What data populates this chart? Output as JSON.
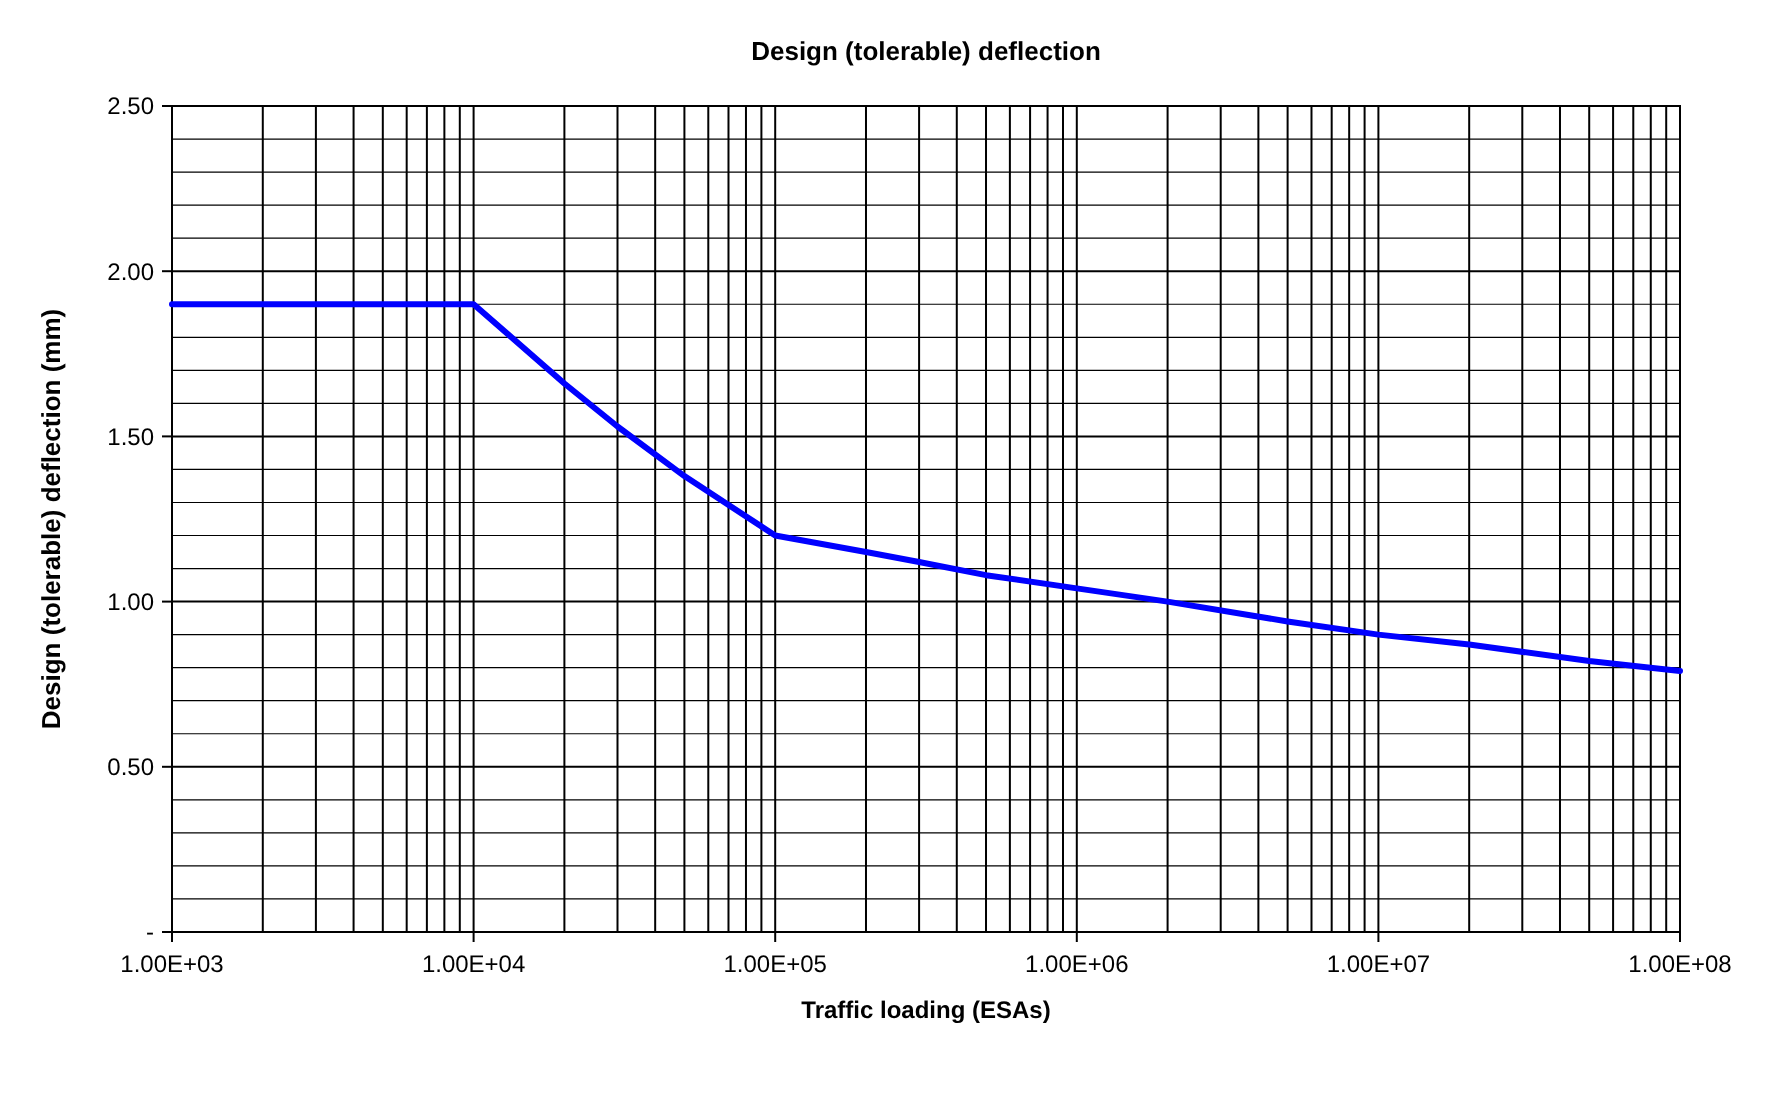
{
  "chart_data": {
    "type": "line",
    "title": "Design (tolerable) deflection",
    "xlabel": "Traffic loading (ESAs)",
    "ylabel": "Design (tolerable) deflection (mm)",
    "log": "x",
    "grid": true,
    "marker": "none",
    "line_style": "solid",
    "x": [
      1000,
      10000,
      20000,
      30000,
      50000,
      100000,
      200000,
      300000,
      500000,
      1000000,
      2000000,
      5000000,
      10000000,
      20000000,
      50000000,
      100000000
    ],
    "series": [
      {
        "color": "#0000ff",
        "values": [
          1.9,
          1.9,
          1.66,
          1.53,
          1.38,
          1.2,
          1.15,
          1.12,
          1.08,
          1.04,
          1.0,
          0.94,
          0.9,
          0.87,
          0.82,
          0.79
        ]
      }
    ],
    "xlim": [
      1000,
      100000000
    ],
    "ylim": [
      0,
      2.5
    ],
    "xticks": [
      {
        "value": 1000,
        "label": "1.00E+03"
      },
      {
        "value": 2000,
        "label": null
      },
      {
        "value": 3000,
        "label": null
      },
      {
        "value": 4000,
        "label": null
      },
      {
        "value": 5000,
        "label": null
      },
      {
        "value": 6000,
        "label": null
      },
      {
        "value": 7000,
        "label": null
      },
      {
        "value": 8000,
        "label": null
      },
      {
        "value": 9000,
        "label": null
      },
      {
        "value": 10000,
        "label": "1.00E+04"
      },
      {
        "value": 20000,
        "label": null
      },
      {
        "value": 30000,
        "label": null
      },
      {
        "value": 40000,
        "label": null
      },
      {
        "value": 50000,
        "label": null
      },
      {
        "value": 60000,
        "label": null
      },
      {
        "value": 70000,
        "label": null
      },
      {
        "value": 80000,
        "label": null
      },
      {
        "value": 90000,
        "label": null
      },
      {
        "value": 100000,
        "label": "1.00E+05"
      },
      {
        "value": 200000,
        "label": null
      },
      {
        "value": 300000,
        "label": null
      },
      {
        "value": 400000,
        "label": null
      },
      {
        "value": 500000,
        "label": null
      },
      {
        "value": 600000,
        "label": null
      },
      {
        "value": 700000,
        "label": null
      },
      {
        "value": 800000,
        "label": null
      },
      {
        "value": 900000,
        "label": null
      },
      {
        "value": 1000000,
        "label": "1.00E+06"
      },
      {
        "value": 2000000,
        "label": null
      },
      {
        "value": 3000000,
        "label": null
      },
      {
        "value": 4000000,
        "label": null
      },
      {
        "value": 5000000,
        "label": null
      },
      {
        "value": 6000000,
        "label": null
      },
      {
        "value": 7000000,
        "label": null
      },
      {
        "value": 8000000,
        "label": null
      },
      {
        "value": 9000000,
        "label": null
      },
      {
        "value": 10000000,
        "label": "1.00E+07"
      },
      {
        "value": 20000000,
        "label": null
      },
      {
        "value": 30000000,
        "label": null
      },
      {
        "value": 40000000,
        "label": null
      },
      {
        "value": 50000000,
        "label": null
      },
      {
        "value": 60000000,
        "label": null
      },
      {
        "value": 70000000,
        "label": null
      },
      {
        "value": 80000000,
        "label": null
      },
      {
        "value": 90000000,
        "label": null
      },
      {
        "value": 100000000,
        "label": "1.00E+08"
      }
    ],
    "yticks": [
      {
        "value": 0,
        "label": "-"
      },
      {
        "value": 0.1,
        "label": null
      },
      {
        "value": 0.2,
        "label": null
      },
      {
        "value": 0.3,
        "label": null
      },
      {
        "value": 0.4,
        "label": null
      },
      {
        "value": 0.5,
        "label": "0.50"
      },
      {
        "value": 0.6,
        "label": null
      },
      {
        "value": 0.7,
        "label": null
      },
      {
        "value": 0.8,
        "label": null
      },
      {
        "value": 0.9,
        "label": null
      },
      {
        "value": 1,
        "label": "1.00"
      },
      {
        "value": 1.1,
        "label": null
      },
      {
        "value": 1.2,
        "label": null
      },
      {
        "value": 1.3,
        "label": null
      },
      {
        "value": 1.4,
        "label": null
      },
      {
        "value": 1.5,
        "label": "1.50"
      },
      {
        "value": 1.6,
        "label": null
      },
      {
        "value": 1.7,
        "label": null
      },
      {
        "value": 1.8,
        "label": null
      },
      {
        "value": 1.9,
        "label": null
      },
      {
        "value": 2,
        "label": "2.00"
      },
      {
        "value": 2.1,
        "label": null
      },
      {
        "value": 2.2,
        "label": null
      },
      {
        "value": 2.3,
        "label": null
      },
      {
        "value": 2.4,
        "label": null
      },
      {
        "value": 2.5,
        "label": "2.50"
      }
    ]
  }
}
